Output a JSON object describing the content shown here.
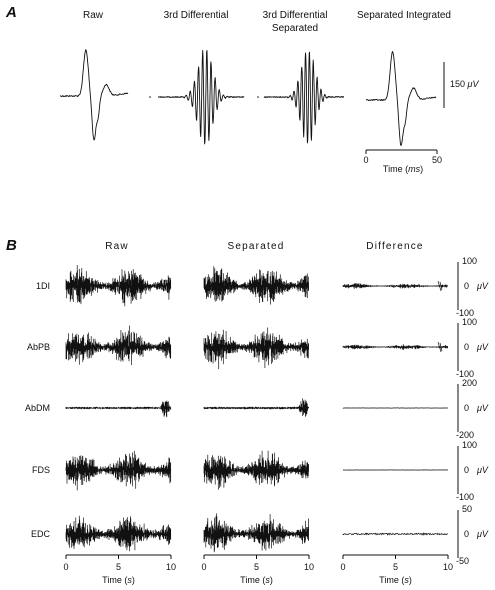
{
  "panel_a": {
    "label": "A",
    "titles": [
      "Raw",
      "3rd Differential",
      "3rd Differential",
      "Separated Integrated"
    ],
    "title_second_line": "Separated",
    "scale_value": "150",
    "scale_unit": "μV",
    "x_ticks": [
      "0",
      "50"
    ],
    "x_label": "Time (",
    "x_label_unit": "ms",
    "x_label_end": ")"
  },
  "panel_b": {
    "label": "B",
    "column_titles": [
      "Raw",
      "Separated",
      "Difference"
    ],
    "rows": [
      {
        "name": "1DI",
        "scale_top": "100",
        "scale_mid": "0",
        "scale_bottom": "-100",
        "unit": "μV"
      },
      {
        "name": "AbPB",
        "scale_top": "100",
        "scale_mid": "0",
        "scale_bottom": "-100",
        "unit": "μV"
      },
      {
        "name": "AbDM",
        "scale_top": "200",
        "scale_mid": "0",
        "scale_bottom": "-200",
        "unit": "μV"
      },
      {
        "name": "FDS",
        "scale_top": "100",
        "scale_mid": "0",
        "scale_bottom": "-100",
        "unit": "μV"
      },
      {
        "name": "EDC",
        "scale_top": "50",
        "scale_mid": "0",
        "scale_bottom": "-50",
        "unit": "μV"
      }
    ],
    "x_ticks": [
      "0",
      "5",
      "10"
    ],
    "x_label": "Time (",
    "x_label_unit": "s",
    "x_label_end": ")"
  },
  "chart_data": [
    {
      "type": "line",
      "panel": "A",
      "x_range_ms": [
        0,
        50
      ],
      "scale_bar": "150 μV",
      "series": [
        {
          "name": "Raw",
          "waveform": "biphasic motor unit action potential"
        },
        {
          "name": "3rd Differential",
          "waveform": "oscillatory high-frequency"
        },
        {
          "name": "3rd Differential Separated",
          "waveform": "oscillatory high-frequency"
        },
        {
          "name": "Separated Integrated",
          "waveform": "biphasic motor unit action potential"
        }
      ]
    },
    {
      "type": "line",
      "panel": "B",
      "x_range_s": [
        0,
        10
      ],
      "x_ticks": [
        0,
        5,
        10
      ],
      "series": [
        {
          "name": "1DI",
          "ylim": [
            -100,
            100
          ]
        },
        {
          "name": "AbPB",
          "ylim": [
            -100,
            100
          ]
        },
        {
          "name": "AbDM",
          "ylim": [
            -200,
            200
          ]
        },
        {
          "name": "FDS",
          "ylim": [
            -100,
            100
          ]
        },
        {
          "name": "EDC",
          "ylim": [
            -50,
            50
          ]
        }
      ]
    }
  ]
}
